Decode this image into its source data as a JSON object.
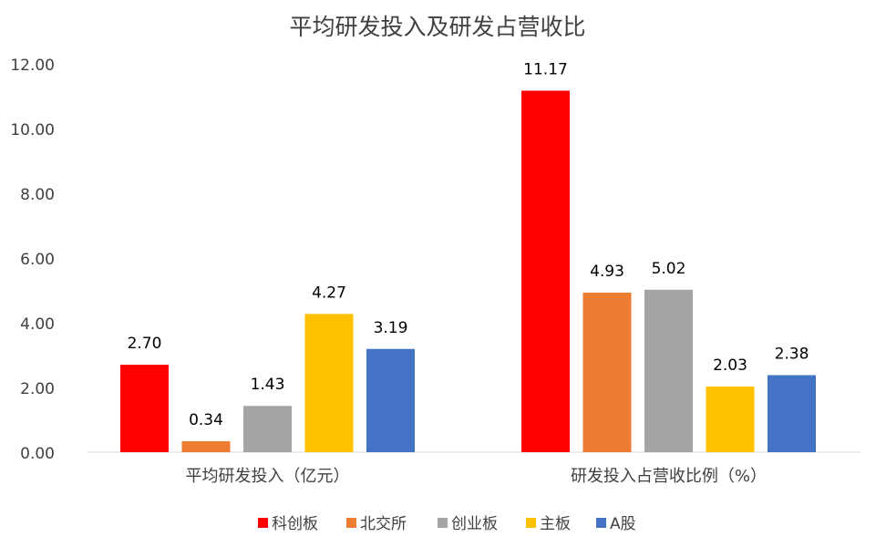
{
  "chart_data": {
    "type": "bar",
    "title": "平均研发投入及研发占营收比",
    "categories": [
      "平均研发投入（亿元）",
      "研发投入占营收比例（%）"
    ],
    "series": [
      {
        "name": "科创板",
        "color": "#ff0000",
        "values": [
          2.7,
          11.17
        ]
      },
      {
        "name": "北交所",
        "color": "#ed7d31",
        "values": [
          0.34,
          4.93
        ]
      },
      {
        "name": "创业板",
        "color": "#a5a5a5",
        "values": [
          1.43,
          5.02
        ]
      },
      {
        "name": "主板",
        "color": "#ffc000",
        "values": [
          4.27,
          2.03
        ]
      },
      {
        "name": "A股",
        "color": "#4472c4",
        "values": [
          3.19,
          2.38
        ]
      }
    ],
    "data_labels": [
      [
        "2.70",
        "0.34",
        "1.43",
        "4.27",
        "3.19"
      ],
      [
        "11.17",
        "4.93",
        "5.02",
        "2.03",
        "2.38"
      ]
    ],
    "y_ticks": [
      "0.00",
      "2.00",
      "4.00",
      "6.00",
      "8.00",
      "10.00",
      "12.00"
    ],
    "ylim": [
      0,
      12
    ],
    "grid": false,
    "legend_position": "bottom"
  }
}
